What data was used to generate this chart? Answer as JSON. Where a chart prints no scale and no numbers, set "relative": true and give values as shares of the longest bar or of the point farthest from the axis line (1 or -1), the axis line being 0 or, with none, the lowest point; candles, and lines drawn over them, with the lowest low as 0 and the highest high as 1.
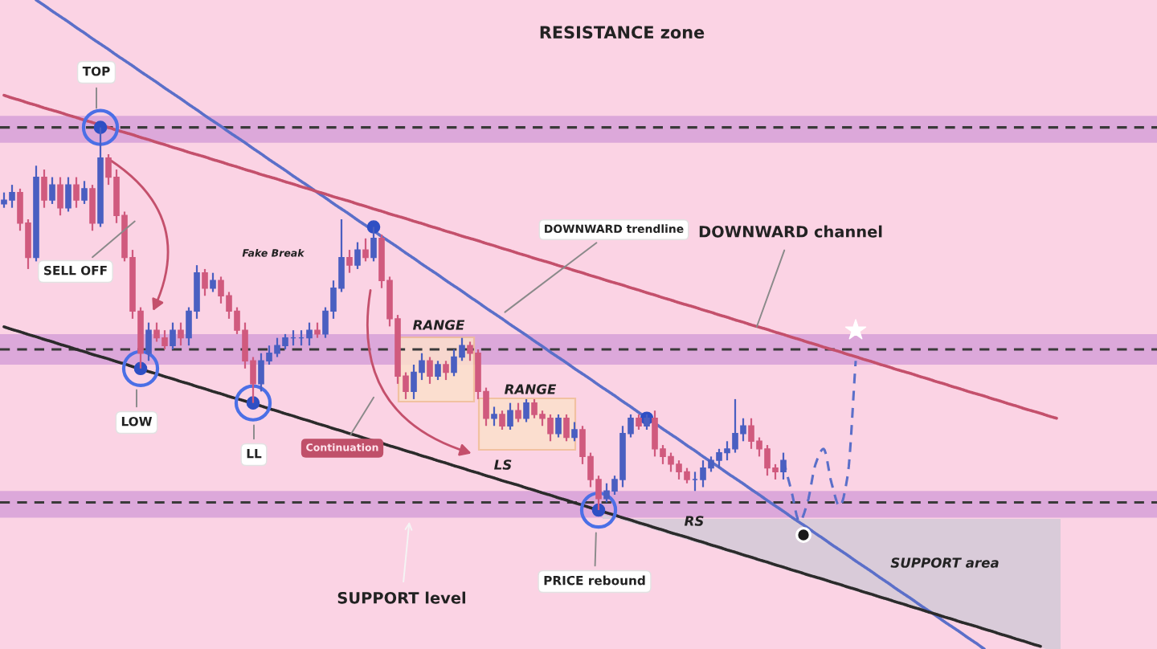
{
  "chart_data": {
    "type": "candlestick",
    "relative": true,
    "categories": [
      null,
      null,
      null,
      null,
      null,
      null,
      null,
      null,
      null,
      null,
      null,
      null,
      null,
      null,
      null,
      null,
      null,
      null,
      null,
      null,
      null,
      null,
      null,
      null,
      null,
      null,
      null,
      null,
      null,
      null,
      null,
      null,
      null,
      null,
      null,
      null,
      null,
      null,
      null,
      null,
      null,
      null,
      null,
      null,
      null,
      null,
      null,
      null,
      null,
      null,
      null,
      null,
      null,
      null,
      null,
      null,
      null,
      null,
      null,
      null,
      null,
      null,
      null,
      null,
      null,
      null,
      null,
      null,
      null,
      null,
      null,
      null,
      null,
      null,
      null,
      null,
      null,
      null,
      null,
      null,
      null,
      null,
      null,
      null,
      null,
      null,
      null,
      null,
      null,
      null,
      null,
      null,
      null,
      null,
      null,
      null,
      null,
      null,
      null,
      null,
      null,
      null,
      null,
      null,
      null,
      null,
      null,
      null,
      null,
      null,
      null,
      null,
      null,
      null,
      null,
      null,
      null,
      null,
      null,
      null,
      null,
      null,
      null,
      null,
      null,
      null,
      null,
      null,
      null,
      null,
      null,
      null,
      null,
      null,
      null,
      null,
      null,
      null,
      null,
      null,
      null,
      null,
      null,
      null
    ],
    "ohlc": [
      [
        0.8,
        0.83,
        0.79,
        0.81
      ],
      [
        0.81,
        0.85,
        0.79,
        0.83
      ],
      [
        0.83,
        0.84,
        0.73,
        0.75
      ],
      [
        0.75,
        0.76,
        0.63,
        0.66
      ],
      [
        0.66,
        0.9,
        0.65,
        0.87
      ],
      [
        0.87,
        0.89,
        0.79,
        0.81
      ],
      [
        0.81,
        0.87,
        0.8,
        0.85
      ],
      [
        0.85,
        0.87,
        0.77,
        0.79
      ],
      [
        0.79,
        0.87,
        0.78,
        0.85
      ],
      [
        0.85,
        0.87,
        0.79,
        0.81
      ],
      [
        0.81,
        0.86,
        0.8,
        0.84
      ],
      [
        0.84,
        0.85,
        0.73,
        0.75
      ],
      [
        0.75,
        1.0,
        0.74,
        0.92
      ],
      [
        0.92,
        0.93,
        0.85,
        0.87
      ],
      [
        0.87,
        0.89,
        0.75,
        0.77
      ],
      [
        0.77,
        0.78,
        0.65,
        0.66
      ],
      [
        0.66,
        0.68,
        0.5,
        0.52
      ],
      [
        0.52,
        0.53,
        0.37,
        0.41
      ],
      [
        0.41,
        0.49,
        0.39,
        0.47
      ],
      [
        0.47,
        0.49,
        0.44,
        0.45
      ],
      [
        0.45,
        0.47,
        0.42,
        0.43
      ],
      [
        0.43,
        0.49,
        0.42,
        0.47
      ],
      [
        0.47,
        0.49,
        0.43,
        0.45
      ],
      [
        0.45,
        0.53,
        0.43,
        0.52
      ],
      [
        0.52,
        0.64,
        0.5,
        0.62
      ],
      [
        0.62,
        0.63,
        0.56,
        0.58
      ],
      [
        0.58,
        0.62,
        0.57,
        0.6
      ],
      [
        0.6,
        0.61,
        0.54,
        0.56
      ],
      [
        0.56,
        0.57,
        0.5,
        0.52
      ],
      [
        0.52,
        0.53,
        0.46,
        0.47
      ],
      [
        0.47,
        0.49,
        0.37,
        0.39
      ],
      [
        0.39,
        0.4,
        0.28,
        0.33
      ],
      [
        0.33,
        0.41,
        0.31,
        0.39
      ],
      [
        0.39,
        0.43,
        0.38,
        0.41
      ],
      [
        0.41,
        0.45,
        0.4,
        0.43
      ],
      [
        0.43,
        0.46,
        0.42,
        0.45
      ],
      [
        0.45,
        0.47,
        0.43,
        0.45
      ],
      [
        0.45,
        0.47,
        0.43,
        0.45
      ],
      [
        0.45,
        0.49,
        0.43,
        0.47
      ],
      [
        0.47,
        0.49,
        0.45,
        0.46
      ],
      [
        0.46,
        0.53,
        0.45,
        0.52
      ],
      [
        0.52,
        0.6,
        0.5,
        0.58
      ],
      [
        0.58,
        0.76,
        0.57,
        0.66
      ],
      [
        0.66,
        0.68,
        0.62,
        0.64
      ],
      [
        0.64,
        0.7,
        0.63,
        0.68
      ],
      [
        0.68,
        0.71,
        0.65,
        0.66
      ],
      [
        0.66,
        0.74,
        0.65,
        0.71
      ],
      [
        0.71,
        0.72,
        0.58,
        0.6
      ],
      [
        0.6,
        0.61,
        0.48,
        0.5
      ],
      [
        0.5,
        0.51,
        0.33,
        0.35
      ],
      [
        0.35,
        0.36,
        0.29,
        0.31
      ],
      [
        0.31,
        0.38,
        0.29,
        0.36
      ],
      [
        0.36,
        0.41,
        0.34,
        0.39
      ],
      [
        0.39,
        0.4,
        0.33,
        0.35
      ],
      [
        0.35,
        0.39,
        0.34,
        0.38
      ],
      [
        0.38,
        0.39,
        0.34,
        0.36
      ],
      [
        0.36,
        0.42,
        0.35,
        0.4
      ],
      [
        0.4,
        0.45,
        0.39,
        0.43
      ],
      [
        0.43,
        0.44,
        0.39,
        0.41
      ],
      [
        0.41,
        0.42,
        0.29,
        0.31
      ],
      [
        0.31,
        0.32,
        0.22,
        0.24
      ],
      [
        0.24,
        0.27,
        0.22,
        0.25
      ],
      [
        0.25,
        0.26,
        0.21,
        0.22
      ],
      [
        0.22,
        0.28,
        0.21,
        0.26
      ],
      [
        0.26,
        0.28,
        0.23,
        0.24
      ],
      [
        0.24,
        0.29,
        0.23,
        0.28
      ],
      [
        0.28,
        0.29,
        0.24,
        0.25
      ],
      [
        0.25,
        0.26,
        0.22,
        0.24
      ],
      [
        0.24,
        0.25,
        0.18,
        0.2
      ],
      [
        0.2,
        0.25,
        0.19,
        0.24
      ],
      [
        0.24,
        0.25,
        0.18,
        0.19
      ],
      [
        0.19,
        0.23,
        0.18,
        0.21
      ],
      [
        0.21,
        0.22,
        0.12,
        0.14
      ],
      [
        0.14,
        0.15,
        0.06,
        0.08
      ],
      [
        0.08,
        0.09,
        0.0,
        0.03
      ],
      [
        0.03,
        0.07,
        0.02,
        0.05
      ],
      [
        0.05,
        0.09,
        0.04,
        0.08
      ],
      [
        0.08,
        0.22,
        0.06,
        0.2
      ],
      [
        0.2,
        0.25,
        0.19,
        0.24
      ],
      [
        0.24,
        0.25,
        0.21,
        0.22
      ],
      [
        0.22,
        0.25,
        0.21,
        0.24
      ],
      [
        0.24,
        0.26,
        0.14,
        0.16
      ],
      [
        0.16,
        0.17,
        0.12,
        0.14
      ],
      [
        0.14,
        0.15,
        0.1,
        0.12
      ],
      [
        0.12,
        0.13,
        0.08,
        0.1
      ],
      [
        0.1,
        0.11,
        0.07,
        0.08
      ],
      [
        0.08,
        0.1,
        0.05,
        0.08
      ],
      [
        0.08,
        0.13,
        0.06,
        0.11
      ],
      [
        0.11,
        0.14,
        0.1,
        0.13
      ],
      [
        0.13,
        0.16,
        0.11,
        0.15
      ],
      [
        0.15,
        0.18,
        0.13,
        0.16
      ],
      [
        0.16,
        0.29,
        0.15,
        0.2
      ],
      [
        0.2,
        0.24,
        0.18,
        0.22
      ],
      [
        0.22,
        0.24,
        0.16,
        0.18
      ],
      [
        0.18,
        0.19,
        0.14,
        0.16
      ],
      [
        0.16,
        0.17,
        0.09,
        0.11
      ],
      [
        0.11,
        0.12,
        0.08,
        0.1
      ],
      [
        0.1,
        0.15,
        0.08,
        0.13
      ],
      null,
      null,
      null,
      null,
      null,
      null,
      null,
      null,
      null,
      null,
      null,
      null,
      null,
      null,
      null,
      null,
      null,
      null,
      null,
      null,
      null,
      null,
      null,
      null,
      null,
      null,
      null,
      null,
      null,
      null,
      null,
      null,
      null,
      null,
      null,
      null,
      null,
      null,
      null,
      null,
      null,
      null,
      null,
      null,
      null,
      null
    ],
    "colors": [
      "#4a5fc1",
      "#4a5fc1",
      "#d05a7e",
      "#d05a7e",
      "#4a5fc1",
      "#d05a7e",
      "#4a5fc1",
      "#d05a7e",
      "#4a5fc1",
      "#d05a7e",
      "#4a5fc1",
      "#d05a7e",
      "#4a5fc1",
      "#d05a7e",
      "#d05a7e",
      "#d05a7e",
      "#d05a7e",
      "#d05a7e",
      "#4a5fc1",
      "#d05a7e",
      "#d05a7e",
      "#4a5fc1",
      "#d05a7e",
      "#4a5fc1",
      "#4a5fc1",
      "#d05a7e",
      "#4a5fc1",
      "#d05a7e",
      "#d05a7e",
      "#d05a7e",
      "#d05a7e",
      "#d05a7e",
      "#4a5fc1",
      "#4a5fc1",
      "#4a5fc1",
      "#4a5fc1",
      "#4a5fc1",
      "#4a5fc1",
      "#4a5fc1",
      "#d05a7e",
      "#4a5fc1",
      "#4a5fc1",
      "#4a5fc1",
      "#d05a7e",
      "#4a5fc1",
      "#d05a7e",
      "#4a5fc1",
      "#d05a7e",
      "#d05a7e",
      "#d05a7e",
      "#d05a7e",
      "#4a5fc1",
      "#4a5fc1",
      "#d05a7e",
      "#4a5fc1",
      "#d05a7e",
      "#4a5fc1",
      "#4a5fc1",
      "#d05a7e",
      "#d05a7e",
      "#d05a7e",
      "#4a5fc1",
      "#d05a7e",
      "#4a5fc1",
      "#d05a7e",
      "#4a5fc1",
      "#d05a7e",
      "#d05a7e",
      "#d05a7e",
      "#4a5fc1",
      "#d05a7e",
      "#4a5fc1",
      "#d05a7e",
      "#d05a7e",
      "#d05a7e",
      "#4a5fc1",
      "#4a5fc1",
      "#4a5fc1",
      "#4a5fc1",
      "#d05a7e",
      "#4a5fc1",
      "#d05a7e",
      "#d05a7e",
      "#d05a7e",
      "#d05a7e",
      "#d05a7e",
      "#4a5fc1",
      "#4a5fc1",
      "#4a5fc1",
      "#4a5fc1",
      "#4a5fc1",
      "#4a5fc1",
      "#4a5fc1",
      "#d05a7e",
      "#d05a7e",
      "#d05a7e",
      "#d05a7e",
      "#4a5fc1",
      null,
      null,
      null,
      null,
      null,
      null,
      null,
      null,
      null,
      null,
      null,
      null,
      null,
      null,
      null,
      null,
      null,
      null,
      null,
      null,
      null,
      null,
      null,
      null,
      null,
      null,
      null,
      null,
      null,
      null,
      null,
      null,
      null,
      null,
      null,
      null,
      null,
      null,
      null,
      null,
      null,
      null,
      null,
      null,
      null,
      null
    ],
    "series": [
      {
        "type": "line",
        "color": "#5b6fc9",
        "values": [
          null,
          null,
          null,
          null,
          1.333,
          1.319,
          1.304,
          1.29,
          1.276,
          1.261,
          1.247,
          1.232,
          1.218,
          1.204,
          1.189,
          1.175,
          1.161,
          1.146,
          1.132,
          1.118,
          1.103,
          1.089,
          1.075,
          1.06,
          1.046,
          1.031,
          1.017,
          1.003,
          0.988,
          0.974,
          0.96,
          0.945,
          0.931,
          0.916,
          0.902,
          0.888,
          0.873,
          0.859,
          0.845,
          0.83,
          0.816,
          0.801,
          0.787,
          0.773,
          0.758,
          0.744,
          0.73,
          0.715,
          0.701,
          0.687,
          0.672,
          0.658,
          0.643,
          0.629,
          0.615,
          0.6,
          0.586,
          0.572,
          0.557,
          0.543,
          0.528,
          0.514,
          0.5,
          0.485,
          0.471,
          0.457,
          0.442,
          0.428,
          0.413,
          0.399,
          0.385,
          0.37,
          0.356,
          0.342,
          0.327,
          0.313,
          0.299,
          0.284,
          0.27,
          0.255,
          0.241,
          0.227,
          0.212,
          0.198,
          0.184,
          0.169,
          0.155,
          0.14,
          0.126,
          0.112,
          0.097,
          0.083,
          0.069,
          0.054,
          0.04,
          0.025,
          0.011,
          -0.003,
          -0.018,
          -0.032,
          -0.046,
          -0.061,
          -0.075,
          -0.09,
          -0.104,
          -0.118,
          -0.133,
          -0.147,
          -0.161,
          -0.176,
          -0.19,
          -0.205,
          -0.219,
          -0.233,
          -0.248,
          -0.262,
          -0.276,
          -0.291,
          -0.305,
          -0.319,
          -0.334,
          -0.348,
          -0.363,
          null,
          null,
          null,
          null,
          null,
          null,
          null,
          null,
          null,
          null,
          null,
          null,
          null,
          null,
          null,
          null,
          null,
          null,
          null,
          null,
          null
        ]
      },
      {
        "type": "line",
        "color": "#c4506c",
        "values": [
          1.084,
          1.077,
          1.071,
          1.064,
          1.058,
          1.051,
          1.045,
          1.039,
          1.032,
          1.026,
          1.019,
          1.013,
          1.006,
          1.0,
          0.993,
          0.987,
          0.981,
          0.974,
          0.968,
          0.961,
          0.955,
          0.948,
          0.942,
          0.935,
          0.929,
          0.923,
          0.916,
          0.91,
          0.903,
          0.897,
          0.89,
          0.884,
          0.877,
          0.871,
          0.865,
          0.858,
          0.852,
          0.845,
          0.839,
          0.832,
          0.826,
          0.819,
          0.813,
          0.807,
          0.8,
          0.794,
          0.787,
          0.781,
          0.774,
          0.768,
          0.762,
          0.755,
          0.749,
          0.742,
          0.736,
          0.729,
          0.723,
          0.716,
          0.71,
          0.704,
          0.697,
          0.691,
          0.684,
          0.678,
          0.671,
          0.665,
          0.658,
          0.652,
          0.646,
          0.639,
          0.633,
          0.626,
          0.62,
          0.613,
          0.607,
          0.6,
          0.594,
          0.588,
          0.581,
          0.575,
          0.568,
          0.562,
          0.555,
          0.549,
          0.542,
          0.536,
          0.53,
          0.523,
          0.517,
          0.51,
          0.504,
          0.497,
          0.491,
          0.484,
          0.478,
          0.472,
          0.465,
          0.459,
          0.452,
          0.446,
          0.439,
          0.433,
          0.426,
          0.42,
          0.414,
          0.407,
          0.401,
          0.394,
          0.388,
          0.381,
          0.375,
          0.368,
          0.362,
          0.356,
          0.349,
          0.343,
          0.336,
          0.33,
          0.323,
          0.317,
          0.31,
          0.304,
          0.298,
          0.291,
          0.285,
          0.278,
          0.272,
          0.265,
          0.259,
          0.253,
          0.246,
          0.24,
          null,
          null,
          null,
          null,
          null,
          null,
          null,
          null,
          null,
          null,
          null,
          null
        ]
      },
      {
        "type": "line",
        "color": "#2b2b2b",
        "values": [
          0.479,
          0.472,
          0.466,
          0.459,
          0.453,
          0.446,
          0.44,
          0.433,
          0.427,
          0.42,
          0.414,
          0.407,
          0.401,
          0.395,
          0.388,
          0.382,
          0.375,
          0.369,
          0.362,
          0.356,
          0.349,
          0.343,
          0.336,
          0.33,
          0.323,
          0.317,
          0.31,
          0.304,
          0.297,
          0.291,
          0.285,
          0.278,
          0.272,
          0.265,
          0.259,
          0.252,
          0.246,
          0.239,
          0.233,
          0.226,
          0.22,
          0.213,
          0.207,
          0.2,
          0.194,
          0.187,
          0.181,
          0.175,
          0.168,
          0.162,
          0.155,
          0.149,
          0.142,
          0.136,
          0.129,
          0.123,
          0.116,
          0.11,
          0.103,
          0.097,
          0.09,
          0.084,
          0.077,
          0.071,
          0.065,
          0.058,
          0.052,
          0.045,
          0.039,
          0.032,
          0.026,
          0.019,
          0.013,
          0.006,
          0.0,
          -0.007,
          -0.013,
          -0.02,
          -0.026,
          -0.033,
          -0.039,
          -0.046,
          -0.052,
          -0.059,
          -0.065,
          -0.071,
          -0.078,
          -0.084,
          -0.091,
          -0.097,
          -0.104,
          -0.11,
          -0.117,
          -0.123,
          -0.13,
          -0.136,
          -0.143,
          -0.149,
          -0.156,
          -0.162,
          -0.169,
          -0.175,
          -0.181,
          -0.188,
          -0.194,
          -0.201,
          -0.207,
          -0.214,
          -0.22,
          -0.227,
          -0.233,
          -0.24,
          -0.246,
          -0.253,
          -0.259,
          -0.266,
          -0.272,
          -0.279,
          -0.285,
          -0.292,
          -0.298,
          -0.304,
          -0.311,
          -0.317,
          -0.324,
          -0.33,
          -0.337,
          -0.343,
          -0.35,
          -0.356,
          null,
          null,
          null,
          null,
          null,
          null,
          null,
          null,
          null,
          null,
          null,
          null,
          null,
          null
        ]
      },
      {
        "type": "line",
        "color": "#5b6fc9",
        "line_style": "dashed",
        "values": [
          null,
          null,
          null,
          null,
          null,
          null,
          null,
          null,
          null,
          null,
          null,
          null,
          null,
          null,
          null,
          null,
          null,
          null,
          null,
          null,
          null,
          null,
          null,
          null,
          null,
          null,
          null,
          null,
          null,
          null,
          null,
          null,
          null,
          null,
          null,
          null,
          null,
          null,
          null,
          null,
          null,
          null,
          null,
          null,
          null,
          null,
          null,
          null,
          null,
          null,
          null,
          null,
          null,
          null,
          null,
          null,
          null,
          null,
          null,
          null,
          null,
          null,
          null,
          null,
          null,
          null,
          null,
          null,
          null,
          null,
          null,
          null,
          null,
          null,
          null,
          null,
          null,
          null,
          null,
          null,
          null,
          null,
          null,
          null,
          null,
          null,
          null,
          null,
          null,
          null,
          null,
          null,
          null,
          null,
          null,
          null,
          null,
          0.13,
          0.05,
          -0.03,
          0.02,
          0.12,
          0.16,
          0.07,
          0.01,
          0.09,
          0.39,
          null,
          null,
          null,
          null,
          null,
          null,
          null,
          null,
          null,
          null,
          null,
          null,
          null,
          null,
          null,
          null,
          null,
          null,
          null,
          null,
          null,
          null,
          null,
          null,
          null,
          null,
          null,
          null,
          null,
          null,
          null,
          null,
          null,
          null,
          null,
          null,
          null
        ]
      },
      {
        "type": "bubble",
        "color": "#4b6fe6",
        "values": [
          null,
          null,
          null,
          null,
          null,
          null,
          null,
          null,
          null,
          null,
          null,
          null,
          1.0,
          null,
          null,
          null,
          null,
          0.37,
          null,
          null,
          null,
          null,
          null,
          null,
          null,
          null,
          null,
          null,
          null,
          null,
          null,
          0.28,
          null,
          null,
          null,
          null,
          null,
          null,
          null,
          null,
          null,
          null,
          null,
          null,
          null,
          null,
          null,
          null,
          null,
          null,
          null,
          null,
          null,
          null,
          null,
          null,
          null,
          null,
          null,
          null,
          null,
          null,
          null,
          null,
          null,
          null,
          null,
          null,
          null,
          null,
          null,
          null,
          null,
          null,
          0.0,
          null,
          null,
          null,
          null,
          null,
          null,
          null,
          null,
          null,
          null,
          null,
          null,
          null,
          null,
          null,
          null,
          null,
          null,
          null,
          null,
          null,
          null,
          null,
          null,
          null,
          null,
          null,
          null,
          null,
          null,
          null,
          null,
          null,
          null,
          null,
          null,
          null,
          null,
          null,
          null,
          null,
          null,
          null,
          null,
          null,
          null,
          null,
          null,
          null,
          null,
          null,
          null,
          null,
          null,
          null,
          null,
          null,
          null,
          null,
          null,
          null,
          null,
          null,
          null,
          null,
          null,
          null,
          null,
          null
        ],
        "sizes": [
          null,
          null,
          null,
          null,
          null,
          null,
          null,
          null,
          null,
          null,
          null,
          null,
          1,
          null,
          null,
          null,
          null,
          1,
          null,
          null,
          null,
          null,
          null,
          null,
          null,
          null,
          null,
          null,
          null,
          null,
          null,
          1,
          null,
          null,
          null,
          null,
          null,
          null,
          null,
          null,
          null,
          null,
          null,
          null,
          null,
          null,
          null,
          null,
          null,
          null,
          null,
          null,
          null,
          null,
          null,
          null,
          null,
          null,
          null,
          null,
          null,
          null,
          null,
          null,
          null,
          null,
          null,
          null,
          null,
          null,
          null,
          null,
          null,
          null,
          1,
          null,
          null,
          null,
          null,
          null,
          null,
          null,
          null,
          null,
          null,
          null,
          null,
          null,
          null,
          null,
          null,
          null,
          null,
          null,
          null,
          null,
          null,
          null,
          null,
          null,
          null,
          null,
          null,
          null,
          null,
          null,
          null,
          null,
          null,
          null,
          null,
          null,
          null,
          null,
          null,
          null,
          null,
          null,
          null,
          null,
          null,
          null,
          null,
          null,
          null,
          null,
          null,
          null,
          null,
          null,
          null,
          null,
          null,
          null,
          null,
          null,
          null,
          null,
          null,
          null,
          null,
          null,
          null,
          null
        ]
      },
      {
        "type": "scatter",
        "color": "#2f4fc4",
        "marker": "circle",
        "values": [
          null,
          null,
          null,
          null,
          null,
          null,
          null,
          null,
          null,
          null,
          null,
          null,
          1.0,
          null,
          null,
          null,
          null,
          0.37,
          null,
          null,
          null,
          null,
          null,
          null,
          null,
          null,
          null,
          null,
          null,
          null,
          null,
          0.28,
          null,
          null,
          null,
          null,
          null,
          null,
          null,
          null,
          null,
          null,
          null,
          null,
          null,
          null,
          0.74,
          null,
          null,
          null,
          null,
          null,
          null,
          null,
          null,
          null,
          null,
          null,
          null,
          null,
          null,
          null,
          null,
          null,
          null,
          null,
          null,
          null,
          null,
          null,
          null,
          null,
          null,
          null,
          0.0,
          null,
          null,
          null,
          null,
          null,
          0.24,
          null,
          null,
          null,
          null,
          null,
          null,
          null,
          null,
          null,
          null,
          null,
          null,
          null,
          null,
          null,
          null,
          null,
          null,
          null,
          null,
          null,
          null,
          null,
          null,
          null,
          null,
          null,
          null,
          null,
          null,
          null,
          null,
          null,
          null,
          null,
          null,
          null,
          null,
          null,
          null,
          null,
          null,
          null,
          null,
          null,
          null,
          null,
          null,
          null,
          null,
          null,
          null,
          null,
          null,
          null,
          null,
          null,
          null,
          null,
          null,
          null,
          null,
          null
        ]
      },
      {
        "type": "scatter",
        "color": "#ffffff",
        "marker": "star",
        "values": [
          null,
          null,
          null,
          null,
          null,
          null,
          null,
          null,
          null,
          null,
          null,
          null,
          null,
          null,
          null,
          null,
          null,
          null,
          null,
          null,
          null,
          null,
          null,
          null,
          null,
          null,
          null,
          null,
          null,
          null,
          null,
          null,
          null,
          null,
          null,
          null,
          null,
          null,
          null,
          null,
          null,
          null,
          null,
          null,
          null,
          null,
          null,
          null,
          null,
          null,
          null,
          null,
          null,
          null,
          null,
          null,
          null,
          null,
          null,
          null,
          null,
          null,
          null,
          null,
          null,
          null,
          null,
          null,
          null,
          null,
          null,
          null,
          null,
          null,
          null,
          null,
          null,
          null,
          null,
          null,
          null,
          null,
          null,
          null,
          null,
          null,
          null,
          null,
          null,
          null,
          null,
          null,
          null,
          null,
          null,
          null,
          null,
          null,
          null,
          null,
          null,
          null,
          null,
          null,
          null,
          null,
          0.47,
          null,
          null,
          null,
          null,
          null,
          null,
          null,
          null,
          null,
          null,
          null,
          null,
          null,
          null,
          null,
          null,
          null,
          null,
          null,
          null,
          null,
          null,
          null,
          null,
          null,
          null,
          null,
          null,
          null,
          null,
          null,
          null,
          null,
          null,
          null,
          null,
          null
        ]
      }
    ],
    "bands": [
      {
        "axis": "y",
        "from": 0.96,
        "to": 1.03,
        "color": "#dca8da"
      },
      {
        "axis": "y",
        "from": 0.38,
        "to": 0.46,
        "color": "#dca8da"
      },
      {
        "axis": "y",
        "from": -0.02,
        "to": 0.05,
        "color": "#dca8da"
      }
    ],
    "ref_lines": [
      {
        "axis": "y",
        "value": 1.0,
        "color": "#3a3a3a",
        "line_style": "dashed"
      },
      {
        "axis": "y",
        "value": 0.42,
        "color": "#3a3a3a",
        "line_style": "dashed"
      },
      {
        "axis": "y",
        "value": 0.02,
        "color": "#3a3a3a",
        "line_style": "dashed"
      }
    ],
    "annotations": [
      "RESISTANCE zone",
      "TOP",
      "SELL OFF",
      "Fake Break",
      "DOWNWARD trendline",
      "DOWNWARD channel",
      "RANGE",
      "RANGE",
      "LOW",
      "LL",
      "Continuation",
      "LS",
      "RS",
      "PRICE rebound",
      "SUPPORT level",
      "SUPPORT area"
    ]
  }
}
